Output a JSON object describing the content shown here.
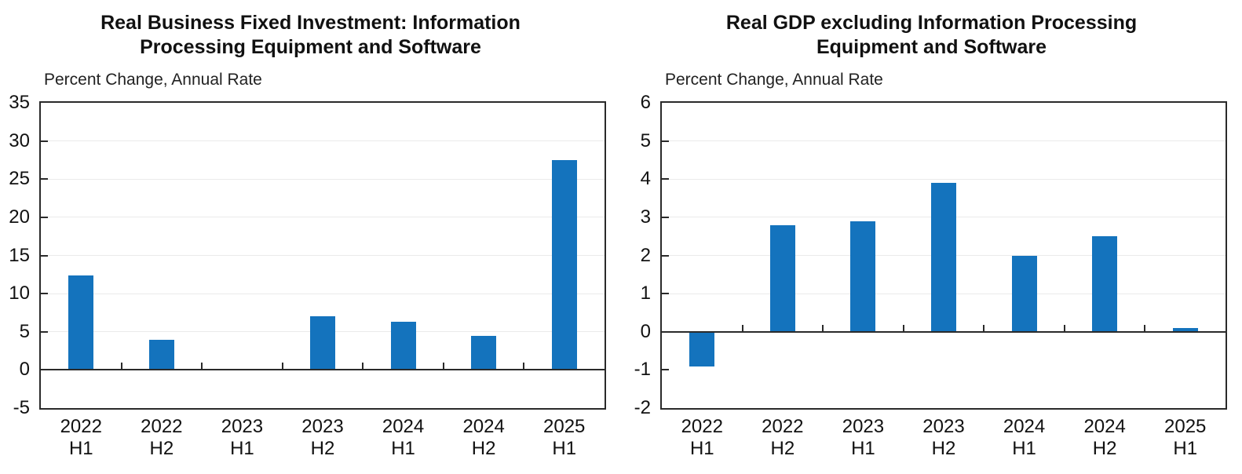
{
  "page": {
    "background": "#ffffff"
  },
  "chart_data": [
    {
      "type": "bar",
      "title": "Real Business Fixed Investment: Information Processing Equipment and Software",
      "title_lines": [
        "Real Business Fixed Investment: Information",
        "Processing Equipment and Software"
      ],
      "axis_note": "Percent Change, Annual Rate",
      "xlabel": "",
      "ylabel": "Percent Change, Annual Rate",
      "categories": [
        "2022 H1",
        "2022 H2",
        "2023 H1",
        "2023 H2",
        "2024 H1",
        "2024 H2",
        "2025 H1"
      ],
      "category_lines": [
        [
          "2022",
          "H1"
        ],
        [
          "2022",
          "H2"
        ],
        [
          "2023",
          "H1"
        ],
        [
          "2023",
          "H2"
        ],
        [
          "2024",
          "H1"
        ],
        [
          "2024",
          "H2"
        ],
        [
          "2025",
          "H1"
        ]
      ],
      "values": [
        12.4,
        3.9,
        0.1,
        7.0,
        6.3,
        4.5,
        27.5
      ],
      "ylim": [
        -5,
        35
      ],
      "yticks": [
        35,
        30,
        25,
        20,
        15,
        10,
        5,
        0,
        -5
      ],
      "grid": "on",
      "legend": "none",
      "bar_color": "#1473bd",
      "axis_color": "#2a2a2a",
      "grid_color": "#eaeaea"
    },
    {
      "type": "bar",
      "title": "Real GDP excluding Information Processing Equipment and Software",
      "title_lines": [
        "Real GDP excluding Information Processing",
        "Equipment and Software"
      ],
      "axis_note": "Percent Change, Annual Rate",
      "xlabel": "",
      "ylabel": "Percent Change, Annual Rate",
      "categories": [
        "2022 H1",
        "2022 H2",
        "2023 H1",
        "2023 H2",
        "2024 H1",
        "2024 H2",
        "2025 H1"
      ],
      "category_lines": [
        [
          "2022",
          "H1"
        ],
        [
          "2022",
          "H2"
        ],
        [
          "2023",
          "H1"
        ],
        [
          "2023",
          "H2"
        ],
        [
          "2024",
          "H1"
        ],
        [
          "2024",
          "H2"
        ],
        [
          "2025",
          "H1"
        ]
      ],
      "values": [
        -0.9,
        2.8,
        2.9,
        3.9,
        2.0,
        2.5,
        0.1
      ],
      "ylim": [
        -2,
        6
      ],
      "yticks": [
        6,
        5,
        4,
        3,
        2,
        1,
        0,
        -1,
        -2
      ],
      "grid": "on",
      "legend": "none",
      "bar_color": "#1473bd",
      "axis_color": "#2a2a2a",
      "grid_color": "#eaeaea"
    }
  ]
}
